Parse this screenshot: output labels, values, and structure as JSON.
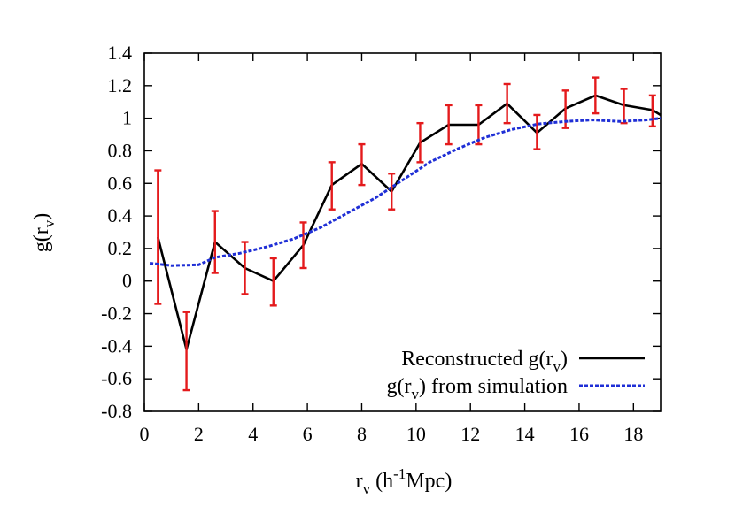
{
  "chart_data": {
    "type": "line",
    "title": "",
    "xlabel": {
      "base": "r",
      "sub": "v",
      "rest_open": " (h",
      "sup": "-1",
      "rest_close": "Mpc)"
    },
    "ylabel": {
      "base": "g(r",
      "sub": "v",
      "close": ")"
    },
    "xlim": [
      0,
      19
    ],
    "ylim": [
      -0.8,
      1.4
    ],
    "xticks": [
      0,
      2,
      4,
      6,
      8,
      10,
      12,
      14,
      16,
      18
    ],
    "xtick_labels": [
      "0",
      "2",
      "4",
      "6",
      "8",
      "10",
      "12",
      "14",
      "16",
      "18"
    ],
    "yticks": [
      -0.8,
      -0.6,
      -0.4,
      -0.2,
      0,
      0.2,
      0.4,
      0.6,
      0.8,
      1,
      1.2,
      1.4
    ],
    "ytick_labels": [
      "-0.8",
      "-0.6",
      "-0.4",
      "-0.2",
      "0",
      "0.2",
      "0.4",
      "0.6",
      "0.8",
      "1",
      "1.2",
      "1.4"
    ],
    "grid": false,
    "legend_position": "bottom-right",
    "series": [
      {
        "name": "Reconstructed g(r_v)",
        "legend": {
          "pre": "Reconstructed g(r",
          "sub": "v",
          "post": ")"
        },
        "color": "#000000",
        "style": "solid",
        "error_color": "#e41a1c",
        "points": [
          {
            "x": 0.5,
            "y": 0.27,
            "lo": -0.14,
            "hi": 0.68
          },
          {
            "x": 1.55,
            "y": -0.42,
            "lo": -0.67,
            "hi": -0.19
          },
          {
            "x": 2.6,
            "y": 0.24,
            "lo": 0.05,
            "hi": 0.43
          },
          {
            "x": 3.7,
            "y": 0.08,
            "lo": -0.08,
            "hi": 0.24
          },
          {
            "x": 4.75,
            "y": 0.0,
            "lo": -0.15,
            "hi": 0.14
          },
          {
            "x": 5.85,
            "y": 0.22,
            "lo": 0.08,
            "hi": 0.36
          },
          {
            "x": 6.9,
            "y": 0.59,
            "lo": 0.44,
            "hi": 0.73
          },
          {
            "x": 8.0,
            "y": 0.72,
            "lo": 0.59,
            "hi": 0.84
          },
          {
            "x": 9.1,
            "y": 0.55,
            "lo": 0.44,
            "hi": 0.66
          },
          {
            "x": 10.15,
            "y": 0.85,
            "lo": 0.73,
            "hi": 0.97
          },
          {
            "x": 11.2,
            "y": 0.96,
            "lo": 0.84,
            "hi": 1.08
          },
          {
            "x": 12.3,
            "y": 0.96,
            "lo": 0.84,
            "hi": 1.08
          },
          {
            "x": 13.35,
            "y": 1.09,
            "lo": 0.97,
            "hi": 1.21
          },
          {
            "x": 14.45,
            "y": 0.91,
            "lo": 0.81,
            "hi": 1.02
          },
          {
            "x": 15.5,
            "y": 1.06,
            "lo": 0.94,
            "hi": 1.17
          },
          {
            "x": 16.6,
            "y": 1.14,
            "lo": 1.03,
            "hi": 1.25
          },
          {
            "x": 17.65,
            "y": 1.08,
            "lo": 0.97,
            "hi": 1.18
          },
          {
            "x": 18.7,
            "y": 1.05,
            "lo": 0.95,
            "hi": 1.14
          },
          {
            "x": 19.0,
            "y": 1.02
          }
        ]
      },
      {
        "name": "g(r_v) from simulation",
        "legend": {
          "pre": "g(r",
          "sub": "v",
          "post": ") from simulation"
        },
        "color": "#1f2fd6",
        "style": "dashed",
        "points": [
          {
            "x": 0.2,
            "y": 0.11
          },
          {
            "x": 1.0,
            "y": 0.095
          },
          {
            "x": 2.0,
            "y": 0.1
          },
          {
            "x": 2.6,
            "y": 0.145
          },
          {
            "x": 3.5,
            "y": 0.17
          },
          {
            "x": 4.5,
            "y": 0.21
          },
          {
            "x": 5.5,
            "y": 0.26
          },
          {
            "x": 6.5,
            "y": 0.33
          },
          {
            "x": 7.5,
            "y": 0.42
          },
          {
            "x": 8.5,
            "y": 0.51
          },
          {
            "x": 9.5,
            "y": 0.62
          },
          {
            "x": 10.5,
            "y": 0.73
          },
          {
            "x": 11.5,
            "y": 0.81
          },
          {
            "x": 12.5,
            "y": 0.88
          },
          {
            "x": 13.5,
            "y": 0.93
          },
          {
            "x": 14.5,
            "y": 0.965
          },
          {
            "x": 15.5,
            "y": 0.98
          },
          {
            "x": 16.5,
            "y": 0.99
          },
          {
            "x": 17.5,
            "y": 0.98
          },
          {
            "x": 18.5,
            "y": 0.99
          },
          {
            "x": 19.0,
            "y": 1.0
          }
        ]
      }
    ]
  }
}
